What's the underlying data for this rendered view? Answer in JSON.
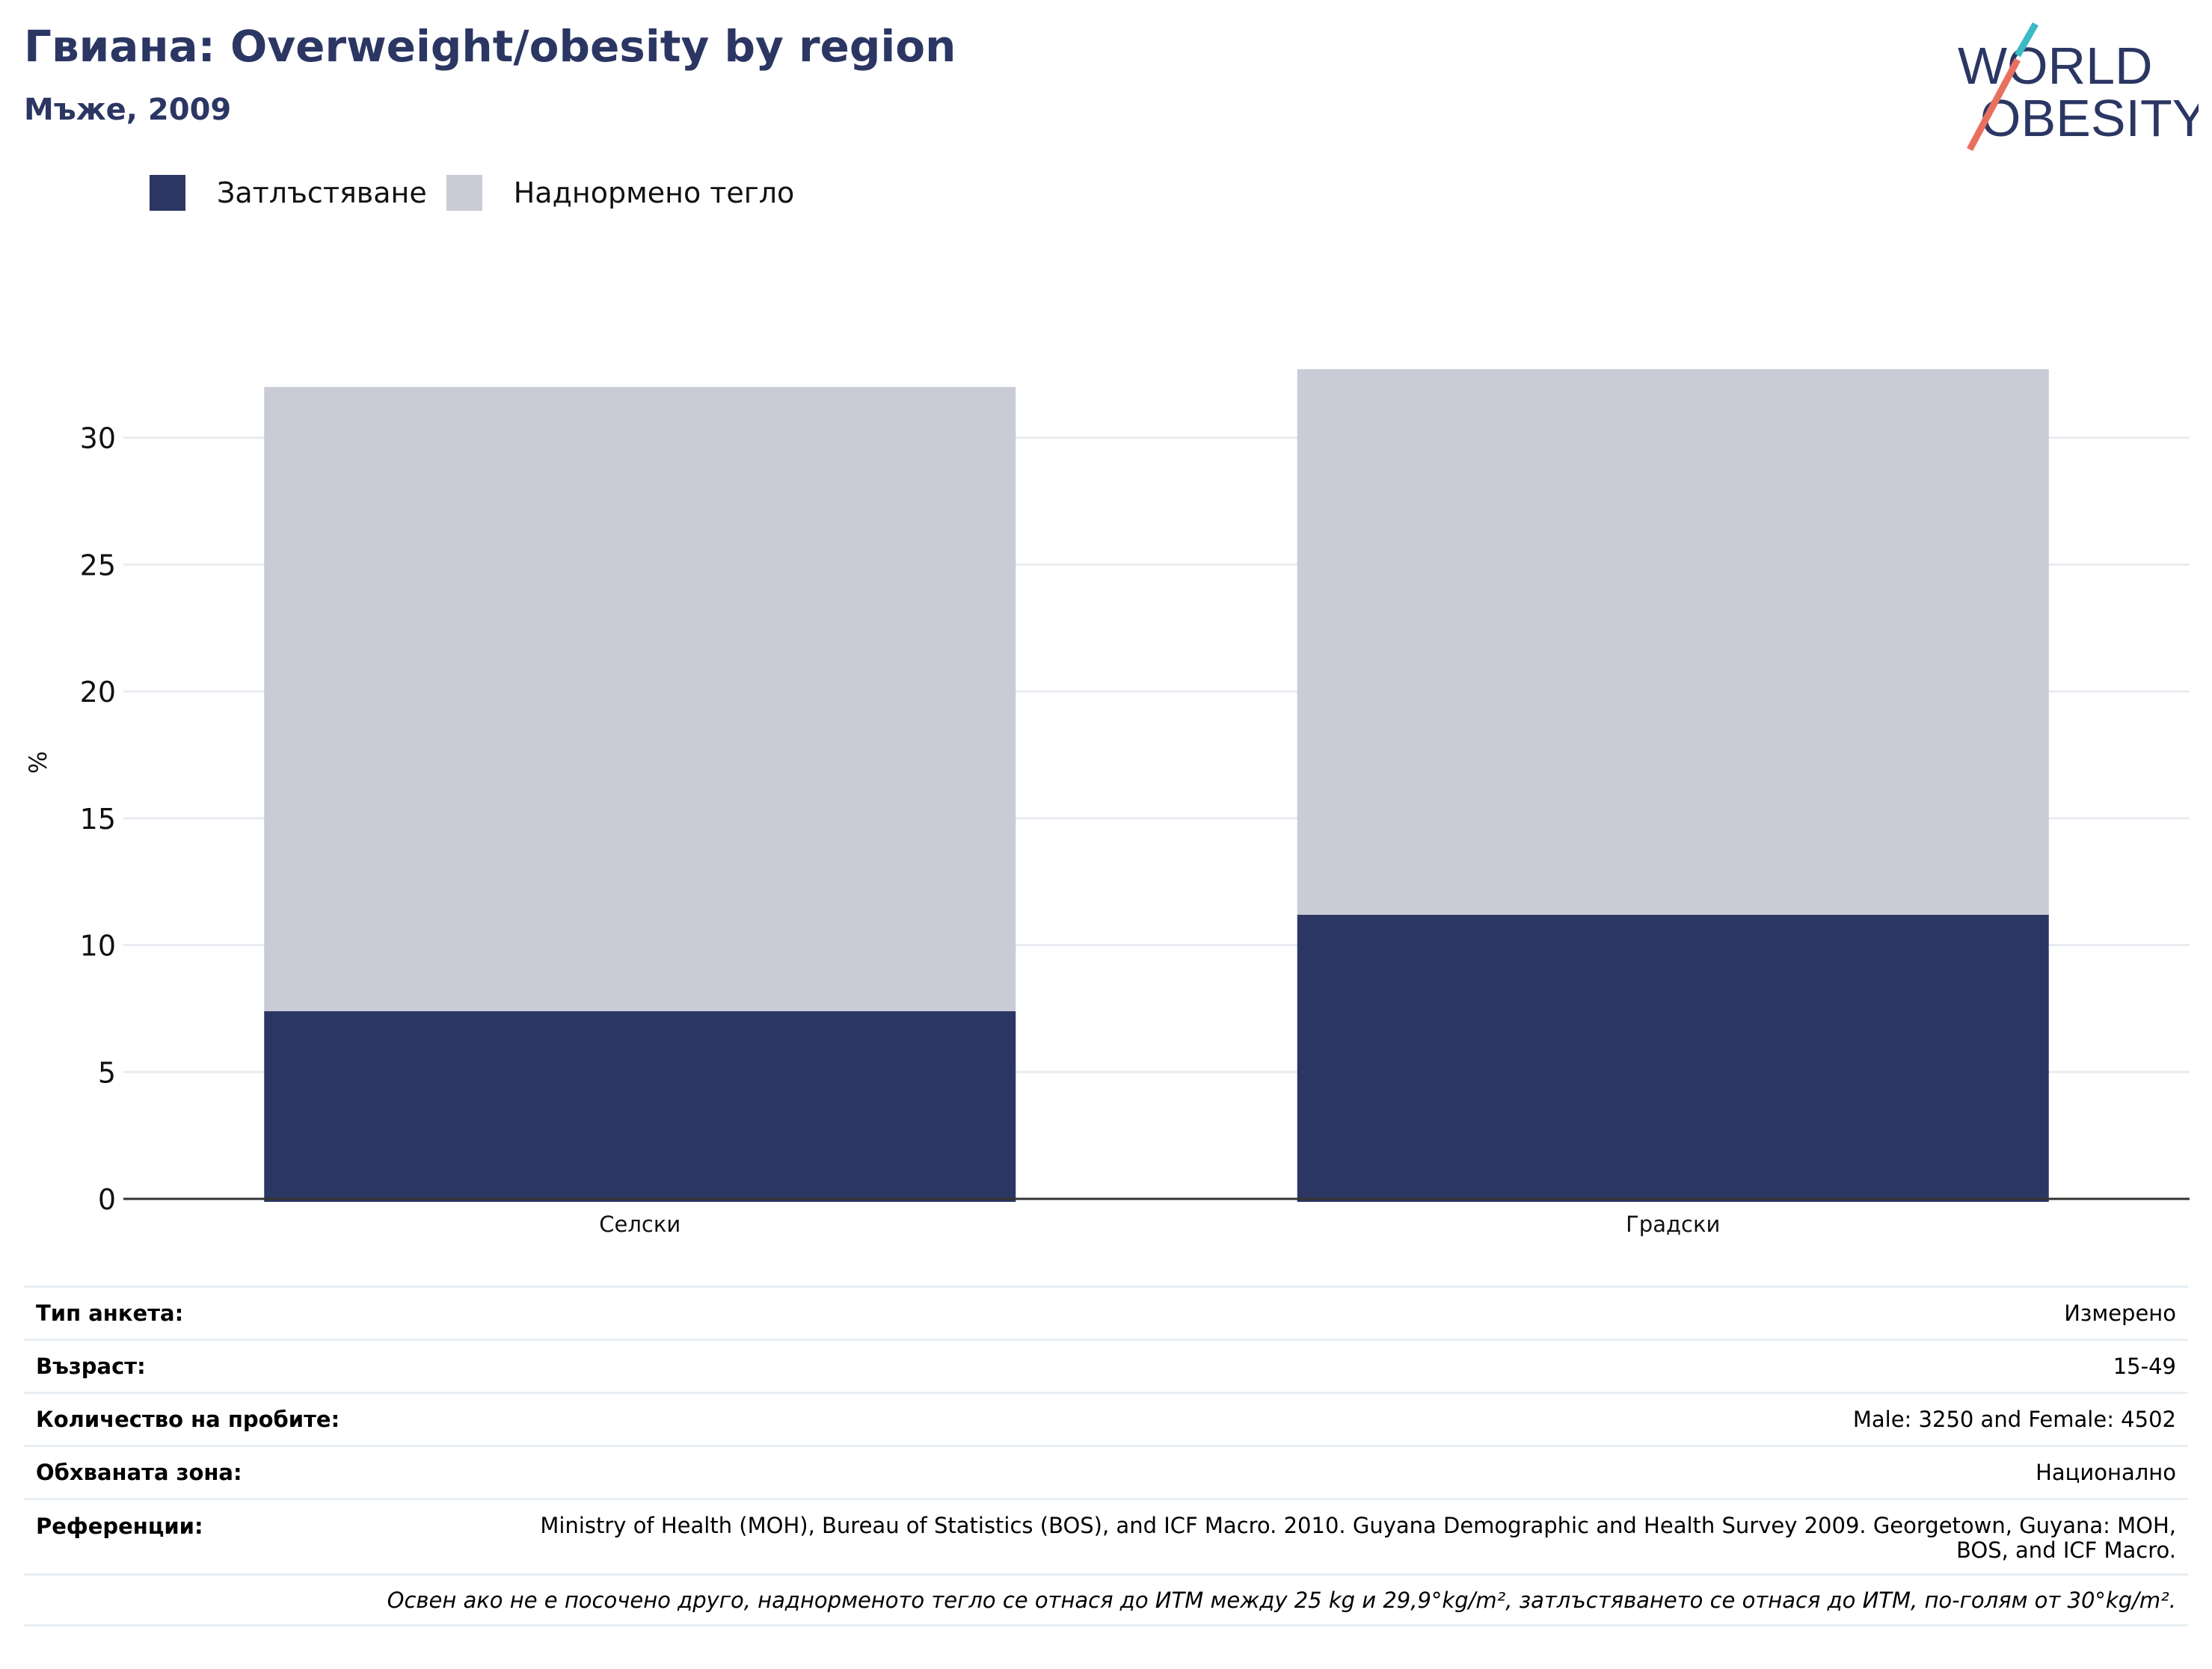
{
  "title": "Гвиана: Overweight/obesity by region",
  "subtitle": "Мъже, 2009",
  "logo": {
    "line1": "WORLD",
    "line2": "OBESITY"
  },
  "colors": {
    "obesity": "#2b3663",
    "overweight": "#c9cbd7",
    "title": "#2b3663",
    "logo_teal": "#3bb9c4",
    "logo_coral": "#e8705f"
  },
  "chart_data": {
    "type": "bar",
    "stacked": true,
    "categories": [
      "Селски",
      "Градски"
    ],
    "series": [
      {
        "name": "Затлъстяване",
        "values": [
          7.4,
          11.2
        ]
      },
      {
        "name": "Наднормено тегло",
        "values": [
          24.6,
          21.5
        ]
      }
    ],
    "ylabel": "%",
    "xlabel": "",
    "ylim": [
      0,
      32.7
    ],
    "yticks": [
      0,
      5,
      10,
      15,
      20,
      25,
      30
    ],
    "grid": true,
    "legend_position": "top-left"
  },
  "meta": {
    "survey_type": {
      "label": "Тип анкета:",
      "value": "Измерено"
    },
    "age": {
      "label": "Възраст:",
      "value": "15-49"
    },
    "sample_size": {
      "label": "Количество на пробите:",
      "value": "Male: 3250 and Female: 4502"
    },
    "area": {
      "label": "Обхваната зона:",
      "value": "Национално"
    },
    "references": {
      "label": "Референции:",
      "value": "Ministry of Health (MOH), Bureau of Statistics (BOS), and ICF Macro. 2010. Guyana Demographic and Health Survey 2009. Georgetown, Guyana: MOH, BOS, and ICF Macro."
    },
    "note": "Освен ако не е посочено друго, наднорменото тегло се отнася до ИТМ между 25 kg и 29,9°kg/m², затлъстяването се отнася до ИТМ, по-голям от 30°kg/m²."
  }
}
